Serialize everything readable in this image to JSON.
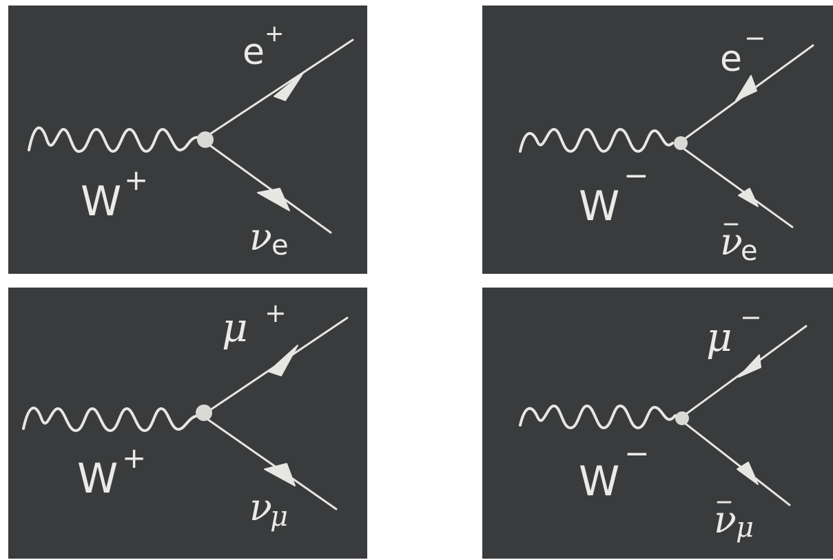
{
  "diagrams": [
    {
      "boson": "W",
      "boson_charge": "+",
      "outgoing": "e",
      "outgoing_sign": "+",
      "neutrino": "ν",
      "neutrino_sub": "e",
      "neutrino_bar": false,
      "lepton_arrow": "in",
      "neutrino_arrow": "out"
    },
    {
      "boson": "W",
      "boson_charge": "−",
      "outgoing": "e",
      "outgoing_sign": "−",
      "neutrino": "ν",
      "neutrino_sub": "e",
      "neutrino_bar": true,
      "lepton_arrow": "out",
      "neutrino_arrow": "in"
    },
    {
      "boson": "W",
      "boson_charge": "+",
      "outgoing": "μ",
      "outgoing_sign": "+",
      "neutrino": "ν",
      "neutrino_sub": "μ",
      "neutrino_bar": false,
      "lepton_arrow": "in",
      "neutrino_arrow": "out"
    },
    {
      "boson": "W",
      "boson_charge": "−",
      "outgoing": "μ",
      "outgoing_sign": "−",
      "neutrino": "ν",
      "neutrino_sub": "μ",
      "neutrino_bar": true,
      "lepton_arrow": "out",
      "neutrino_arrow": "in"
    }
  ],
  "colors": {
    "chalkboard": "#3a3b3c",
    "chalk": "#e6e6e3",
    "background": "#ffffff"
  },
  "icons": {
    "vertex": "vertex-dot-icon",
    "fermion_arrow": "arrowhead-icon",
    "boson_line": "wavy-line-icon"
  }
}
